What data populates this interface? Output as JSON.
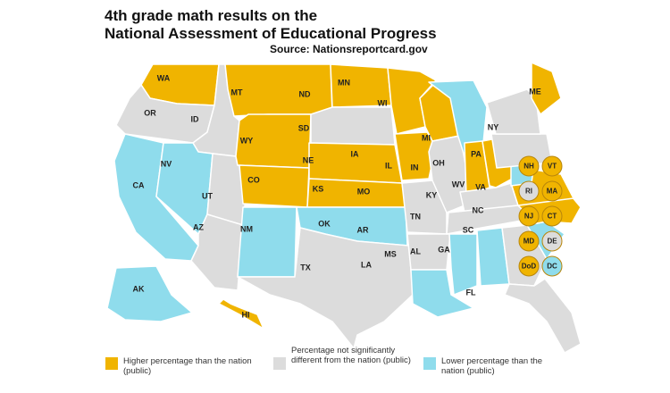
{
  "title_line1": "4th grade math results on the",
  "title_line2": "National Assessment of Educational Progress",
  "source": "Source: Nationsreportcard.gov",
  "colors": {
    "higher": "#f0b400",
    "not_significant": "#dcdcdc",
    "lower": "#8fdcec"
  },
  "legend": [
    {
      "key": "higher",
      "text": "Higher percentage than the nation (public)"
    },
    {
      "key": "not_significant",
      "text": "Percentage not significantly different from the nation (public)"
    },
    {
      "key": "lower",
      "text": "Lower percentage than the nation (public)"
    }
  ],
  "states": [
    {
      "abbr": "WA",
      "status": "higher"
    },
    {
      "abbr": "OR",
      "status": "not_significant"
    },
    {
      "abbr": "CA",
      "status": "lower"
    },
    {
      "abbr": "ID",
      "status": "not_significant"
    },
    {
      "abbr": "NV",
      "status": "lower"
    },
    {
      "abbr": "UT",
      "status": "not_significant"
    },
    {
      "abbr": "AZ",
      "status": "not_significant"
    },
    {
      "abbr": "MT",
      "status": "higher"
    },
    {
      "abbr": "WY",
      "status": "higher"
    },
    {
      "abbr": "CO",
      "status": "higher"
    },
    {
      "abbr": "NM",
      "status": "lower"
    },
    {
      "abbr": "ND",
      "status": "higher"
    },
    {
      "abbr": "SD",
      "status": "not_significant"
    },
    {
      "abbr": "NE",
      "status": "higher"
    },
    {
      "abbr": "KS",
      "status": "higher"
    },
    {
      "abbr": "OK",
      "status": "lower"
    },
    {
      "abbr": "TX",
      "status": "not_significant"
    },
    {
      "abbr": "MN",
      "status": "higher"
    },
    {
      "abbr": "IA",
      "status": "higher"
    },
    {
      "abbr": "MO",
      "status": "not_significant"
    },
    {
      "abbr": "AR",
      "status": "not_significant"
    },
    {
      "abbr": "LA",
      "status": "lower"
    },
    {
      "abbr": "WI",
      "status": "higher"
    },
    {
      "abbr": "IL",
      "status": "not_significant"
    },
    {
      "abbr": "MI",
      "status": "lower"
    },
    {
      "abbr": "IN",
      "status": "higher"
    },
    {
      "abbr": "OH",
      "status": "higher"
    },
    {
      "abbr": "KY",
      "status": "not_significant"
    },
    {
      "abbr": "TN",
      "status": "not_significant"
    },
    {
      "abbr": "MS",
      "status": "lower"
    },
    {
      "abbr": "AL",
      "status": "lower"
    },
    {
      "abbr": "GA",
      "status": "not_significant"
    },
    {
      "abbr": "FL",
      "status": "not_significant"
    },
    {
      "abbr": "SC",
      "status": "lower"
    },
    {
      "abbr": "NC",
      "status": "higher"
    },
    {
      "abbr": "VA",
      "status": "higher"
    },
    {
      "abbr": "WV",
      "status": "lower"
    },
    {
      "abbr": "PA",
      "status": "not_significant"
    },
    {
      "abbr": "NY",
      "status": "not_significant"
    },
    {
      "abbr": "ME",
      "status": "higher"
    },
    {
      "abbr": "AK",
      "status": "lower"
    },
    {
      "abbr": "HI",
      "status": "higher"
    }
  ],
  "small_states": [
    {
      "abbr": "NH",
      "status": "higher"
    },
    {
      "abbr": "VT",
      "status": "higher"
    },
    {
      "abbr": "RI",
      "status": "not_significant"
    },
    {
      "abbr": "MA",
      "status": "higher"
    },
    {
      "abbr": "NJ",
      "status": "higher"
    },
    {
      "abbr": "CT",
      "status": "higher"
    },
    {
      "abbr": "MD",
      "status": "higher"
    },
    {
      "abbr": "DE",
      "status": "not_significant"
    },
    {
      "abbr": "DoD",
      "status": "higher"
    },
    {
      "abbr": "DC",
      "status": "lower"
    }
  ]
}
